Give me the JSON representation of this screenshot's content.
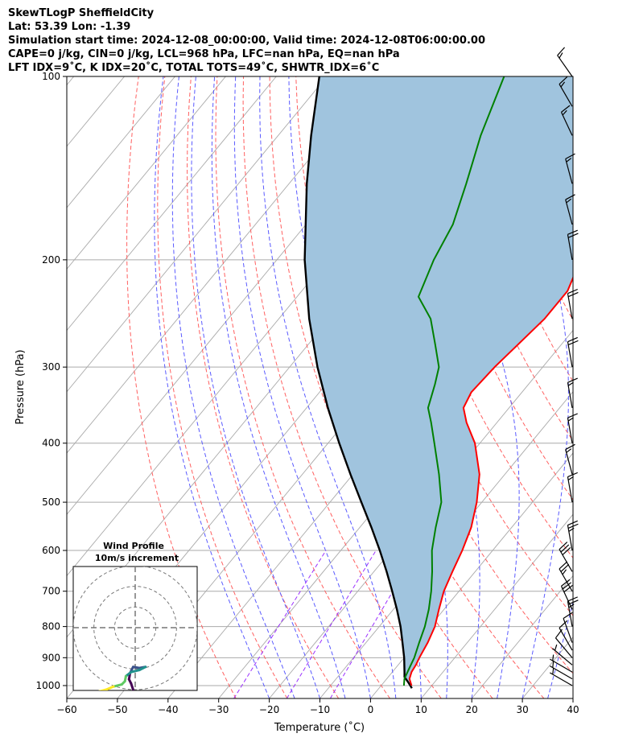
{
  "header": {
    "line1": "SkewTLogP SheffieldCity",
    "line2": "Lat: 53.39   Lon: -1.39",
    "line3": "Simulation start time: 2024-12-08_00:00:00, Valid time: 2024-12-08T06:00:00.00",
    "line4": "CAPE=0 j/kg, CIN=0 j/kg, LCL=968 hPa, LFC=nan hPa, EQ=nan hPa",
    "line5": "LFT IDX=9˚C, K IDX=20˚C, TOTAL TOTS=49˚C, SHWTR_IDX=6˚C"
  },
  "chart_data": {
    "type": "skewt",
    "xlabel": "Temperature (˚C)",
    "ylabel": "Pressure (hPa)",
    "xlim": [
      -60,
      40
    ],
    "ylim": [
      1050,
      100
    ],
    "x_ticks": [
      -60,
      -50,
      -40,
      -30,
      -20,
      -10,
      0,
      10,
      20,
      30,
      40
    ],
    "p_ticks": [
      100,
      200,
      300,
      400,
      500,
      600,
      700,
      800,
      900,
      1000
    ],
    "grid": true,
    "colors": {
      "temperature": "#ff0000",
      "dewpoint": "#008000",
      "parcel": "#000000",
      "cape_fill": "#a0c4de",
      "dry_adiabat": "#ff6060",
      "moist_adiabat": "#5a5aff",
      "mixing_ratio": "#9b30ff",
      "isotherm": "#aaaaaa"
    },
    "temperature": [
      {
        "p": 1000,
        "t": 6.0
      },
      {
        "p": 975,
        "t": 4.5
      },
      {
        "p": 950,
        "t": 3.8
      },
      {
        "p": 925,
        "t": 3.5
      },
      {
        "p": 900,
        "t": 3.0
      },
      {
        "p": 850,
        "t": 2.2
      },
      {
        "p": 800,
        "t": 1.0
      },
      {
        "p": 750,
        "t": -1.0
      },
      {
        "p": 700,
        "t": -3.0
      },
      {
        "p": 650,
        "t": -4.5
      },
      {
        "p": 600,
        "t": -6.0
      },
      {
        "p": 550,
        "t": -8.0
      },
      {
        "p": 500,
        "t": -11.0
      },
      {
        "p": 450,
        "t": -15.0
      },
      {
        "p": 400,
        "t": -21.0
      },
      {
        "p": 370,
        "t": -26.0
      },
      {
        "p": 350,
        "t": -29.0
      },
      {
        "p": 330,
        "t": -30.0
      },
      {
        "p": 300,
        "t": -29.5
      },
      {
        "p": 250,
        "t": -27.5
      },
      {
        "p": 225,
        "t": -27.5
      },
      {
        "p": 200,
        "t": -30.0
      },
      {
        "p": 180,
        "t": -31.0
      },
      {
        "p": 150,
        "t": -30.5
      },
      {
        "p": 125,
        "t": -31.0
      },
      {
        "p": 110,
        "t": -31.0
      },
      {
        "p": 100,
        "t": -32.0
      }
    ],
    "dewpoint": [
      {
        "p": 1000,
        "t": 4.5
      },
      {
        "p": 975,
        "t": 3.5
      },
      {
        "p": 950,
        "t": 3.0
      },
      {
        "p": 925,
        "t": 2.5
      },
      {
        "p": 900,
        "t": 2.0
      },
      {
        "p": 850,
        "t": 0.5
      },
      {
        "p": 800,
        "t": -1.0
      },
      {
        "p": 750,
        "t": -3.0
      },
      {
        "p": 700,
        "t": -5.5
      },
      {
        "p": 650,
        "t": -8.5
      },
      {
        "p": 600,
        "t": -12.0
      },
      {
        "p": 550,
        "t": -15.0
      },
      {
        "p": 500,
        "t": -18.0
      },
      {
        "p": 450,
        "t": -23.0
      },
      {
        "p": 400,
        "t": -29.0
      },
      {
        "p": 370,
        "t": -33.0
      },
      {
        "p": 350,
        "t": -36.0
      },
      {
        "p": 320,
        "t": -38.5
      },
      {
        "p": 300,
        "t": -40.5
      },
      {
        "p": 275,
        "t": -45.0
      },
      {
        "p": 250,
        "t": -50.0
      },
      {
        "p": 230,
        "t": -56.0
      },
      {
        "p": 200,
        "t": -59.0
      },
      {
        "p": 175,
        "t": -61.0
      },
      {
        "p": 150,
        "t": -65.0
      },
      {
        "p": 125,
        "t": -70.0
      },
      {
        "p": 100,
        "t": -75.0
      }
    ],
    "parcel": [
      {
        "p": 1010,
        "t": 6.5
      },
      {
        "p": 990,
        "t": 5.0
      },
      {
        "p": 968,
        "t": 3.2
      },
      {
        "p": 950,
        "t": 2.4
      },
      {
        "p": 900,
        "t": 0.0
      },
      {
        "p": 850,
        "t": -2.8
      },
      {
        "p": 800,
        "t": -5.8
      },
      {
        "p": 750,
        "t": -9.3
      },
      {
        "p": 700,
        "t": -13.2
      },
      {
        "p": 650,
        "t": -17.5
      },
      {
        "p": 600,
        "t": -22.3
      },
      {
        "p": 550,
        "t": -27.7
      },
      {
        "p": 500,
        "t": -33.8
      },
      {
        "p": 450,
        "t": -40.5
      },
      {
        "p": 400,
        "t": -47.8
      },
      {
        "p": 350,
        "t": -55.8
      },
      {
        "p": 300,
        "t": -64.5
      },
      {
        "p": 250,
        "t": -74.0
      },
      {
        "p": 200,
        "t": -84.5
      },
      {
        "p": 150,
        "t": -96.5
      },
      {
        "p": 125,
        "t": -103.5
      },
      {
        "p": 100,
        "t": -111.5
      }
    ],
    "wind_barbs": [
      {
        "p": 1000,
        "speed_kt": 5,
        "dir_deg": 300
      },
      {
        "p": 975,
        "speed_kt": 5,
        "dir_deg": 300
      },
      {
        "p": 950,
        "speed_kt": 5,
        "dir_deg": 300
      },
      {
        "p": 925,
        "speed_kt": 5,
        "dir_deg": 310
      },
      {
        "p": 900,
        "speed_kt": 10,
        "dir_deg": 320
      },
      {
        "p": 875,
        "speed_kt": 10,
        "dir_deg": 330
      },
      {
        "p": 850,
        "speed_kt": 10,
        "dir_deg": 340
      },
      {
        "p": 800,
        "speed_kt": 25,
        "dir_deg": 350
      },
      {
        "p": 750,
        "speed_kt": 30,
        "dir_deg": 335
      },
      {
        "p": 700,
        "speed_kt": 25,
        "dir_deg": 330
      },
      {
        "p": 650,
        "speed_kt": 30,
        "dir_deg": 330
      },
      {
        "p": 600,
        "speed_kt": 25,
        "dir_deg": 350
      },
      {
        "p": 500,
        "speed_kt": 15,
        "dir_deg": 350
      },
      {
        "p": 450,
        "speed_kt": 15,
        "dir_deg": 345
      },
      {
        "p": 400,
        "speed_kt": 15,
        "dir_deg": 350
      },
      {
        "p": 350,
        "speed_kt": 15,
        "dir_deg": 350
      },
      {
        "p": 300,
        "speed_kt": 20,
        "dir_deg": 350
      },
      {
        "p": 250,
        "speed_kt": 20,
        "dir_deg": 350
      },
      {
        "p": 200,
        "speed_kt": 20,
        "dir_deg": 350
      },
      {
        "p": 175,
        "speed_kt": 15,
        "dir_deg": 345
      },
      {
        "p": 150,
        "speed_kt": 15,
        "dir_deg": 345
      },
      {
        "p": 125,
        "speed_kt": 15,
        "dir_deg": 335
      },
      {
        "p": 112,
        "speed_kt": 15,
        "dir_deg": 330
      },
      {
        "p": 100,
        "speed_kt": 15,
        "dir_deg": 325
      }
    ],
    "hodograph": {
      "title_line1": "Wind Profile",
      "title_line2": "10m/s increment",
      "ring_step_ms": 10,
      "range_ms": 30,
      "points": [
        {
          "u": -1.0,
          "v": -30.0
        },
        {
          "u": -2.0,
          "v": -27.0
        },
        {
          "u": -3.0,
          "v": -25.0
        },
        {
          "u": -2.5,
          "v": -22.0
        },
        {
          "u": -1.0,
          "v": -19.0
        },
        {
          "u": 2.0,
          "v": -19.5
        },
        {
          "u": 5.0,
          "v": -19.0
        },
        {
          "u": 2.0,
          "v": -20.5
        },
        {
          "u": -2.0,
          "v": -21.5
        },
        {
          "u": -4.5,
          "v": -23.5
        },
        {
          "u": -5.0,
          "v": -26.0
        },
        {
          "u": -6.5,
          "v": -27.5
        },
        {
          "u": -10.5,
          "v": -28.5
        },
        {
          "u": -14.0,
          "v": -30.0
        },
        {
          "u": -18.0,
          "v": -31.0
        }
      ]
    }
  }
}
